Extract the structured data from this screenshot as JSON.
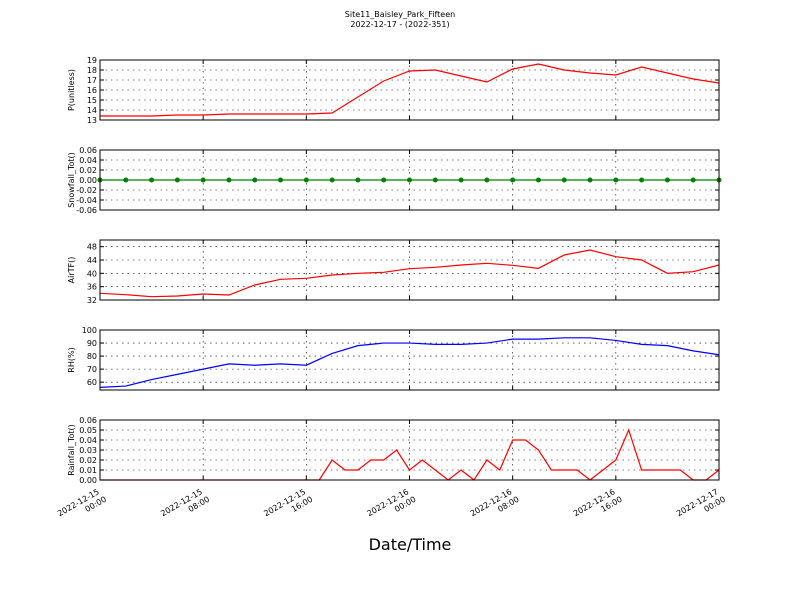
{
  "title": "Site11_Baisley_Park_Fifteen",
  "subtitle": "2022-12-17 - (2022-351)",
  "x_label": "Date/Time",
  "chart_data": [
    {
      "type": "line",
      "y_label": "P(unitless)",
      "color": "#ff0000",
      "grid": true,
      "x": [
        "2022-12-15 00:00",
        "2022-12-15 02:00",
        "2022-12-15 04:00",
        "2022-12-15 06:00",
        "2022-12-15 08:00",
        "2022-12-15 10:00",
        "2022-12-15 12:00",
        "2022-12-15 14:00",
        "2022-12-15 16:00",
        "2022-12-15 18:00",
        "2022-12-15 20:00",
        "2022-12-15 22:00",
        "2022-12-16 00:00",
        "2022-12-16 02:00",
        "2022-12-16 04:00",
        "2022-12-16 06:00",
        "2022-12-16 08:00",
        "2022-12-16 10:00",
        "2022-12-16 12:00",
        "2022-12-16 14:00",
        "2022-12-16 16:00",
        "2022-12-16 18:00",
        "2022-12-16 20:00",
        "2022-12-16 22:00",
        "2022-12-17 00:00"
      ],
      "values": [
        13.4,
        13.4,
        13.4,
        13.5,
        13.5,
        13.6,
        13.6,
        13.6,
        13.6,
        13.7,
        15.3,
        16.9,
        17.9,
        18.0,
        17.4,
        16.8,
        18.1,
        18.6,
        18.0,
        17.7,
        17.5,
        18.3,
        17.7,
        17.1,
        16.7
      ],
      "xlim": [
        "2022-12-15 00:00",
        "2022-12-17 00:00"
      ],
      "xticks": [
        "2022-12-15 00:00",
        "2022-12-15 08:00",
        "2022-12-15 16:00",
        "2022-12-16 00:00",
        "2022-12-16 08:00",
        "2022-12-16 16:00",
        "2022-12-17 00:00"
      ],
      "ylim": [
        13,
        19
      ],
      "yticks": [
        13,
        14,
        15,
        16,
        17,
        18,
        19
      ]
    },
    {
      "type": "line",
      "y_label": "Snowfall_Tot()",
      "color": "#008000",
      "marker": "o",
      "grid": true,
      "x": [
        "2022-12-15 00:00",
        "2022-12-15 02:00",
        "2022-12-15 04:00",
        "2022-12-15 06:00",
        "2022-12-15 08:00",
        "2022-12-15 10:00",
        "2022-12-15 12:00",
        "2022-12-15 14:00",
        "2022-12-15 16:00",
        "2022-12-15 18:00",
        "2022-12-15 20:00",
        "2022-12-15 22:00",
        "2022-12-16 00:00",
        "2022-12-16 02:00",
        "2022-12-16 04:00",
        "2022-12-16 06:00",
        "2022-12-16 08:00",
        "2022-12-16 10:00",
        "2022-12-16 12:00",
        "2022-12-16 14:00",
        "2022-12-16 16:00",
        "2022-12-16 18:00",
        "2022-12-16 20:00",
        "2022-12-16 22:00",
        "2022-12-17 00:00"
      ],
      "values": [
        0,
        0,
        0,
        0,
        0,
        0,
        0,
        0,
        0,
        0,
        0,
        0,
        0,
        0,
        0,
        0,
        0,
        0,
        0,
        0,
        0,
        0,
        0,
        0,
        0
      ],
      "xlim": [
        "2022-12-15 00:00",
        "2022-12-17 00:00"
      ],
      "xticks": [
        "2022-12-15 00:00",
        "2022-12-15 08:00",
        "2022-12-15 16:00",
        "2022-12-16 00:00",
        "2022-12-16 08:00",
        "2022-12-16 16:00",
        "2022-12-17 00:00"
      ],
      "ylim": [
        -0.06,
        0.06
      ],
      "yticks": [
        -0.06,
        -0.04,
        -0.02,
        {
          "value": 0,
          "label": "0.00"
        },
        0.02,
        0.04,
        0.06
      ]
    },
    {
      "type": "line",
      "y_label": "AirTF()",
      "color": "#ff0000",
      "grid": true,
      "x": [
        "2022-12-15 00:00",
        "2022-12-15 02:00",
        "2022-12-15 04:00",
        "2022-12-15 06:00",
        "2022-12-15 08:00",
        "2022-12-15 10:00",
        "2022-12-15 12:00",
        "2022-12-15 14:00",
        "2022-12-15 16:00",
        "2022-12-15 18:00",
        "2022-12-15 20:00",
        "2022-12-15 22:00",
        "2022-12-16 00:00",
        "2022-12-16 02:00",
        "2022-12-16 04:00",
        "2022-12-16 06:00",
        "2022-12-16 08:00",
        "2022-12-16 10:00",
        "2022-12-16 12:00",
        "2022-12-16 14:00",
        "2022-12-16 16:00",
        "2022-12-16 18:00",
        "2022-12-16 20:00",
        "2022-12-16 22:00",
        "2022-12-17 00:00"
      ],
      "values": [
        34,
        33.6,
        33,
        33.2,
        33.8,
        33.5,
        36.5,
        38.2,
        38.5,
        39.5,
        40,
        40.3,
        41.4,
        41.8,
        42.5,
        43,
        42.4,
        41.5,
        45.5,
        47,
        45,
        44,
        40,
        40.5,
        42.5
      ],
      "xlim": [
        "2022-12-15 00:00",
        "2022-12-17 00:00"
      ],
      "xticks": [
        "2022-12-15 00:00",
        "2022-12-15 08:00",
        "2022-12-15 16:00",
        "2022-12-16 00:00",
        "2022-12-16 08:00",
        "2022-12-16 16:00",
        "2022-12-17 00:00"
      ],
      "ylim": [
        32,
        50
      ],
      "yticks": [
        32,
        36,
        40,
        44,
        48
      ]
    },
    {
      "type": "line",
      "y_label": "RH(%)",
      "color": "#0000ff",
      "grid": true,
      "x": [
        "2022-12-15 00:00",
        "2022-12-15 02:00",
        "2022-12-15 04:00",
        "2022-12-15 06:00",
        "2022-12-15 08:00",
        "2022-12-15 10:00",
        "2022-12-15 12:00",
        "2022-12-15 14:00",
        "2022-12-15 16:00",
        "2022-12-15 18:00",
        "2022-12-15 20:00",
        "2022-12-15 22:00",
        "2022-12-16 00:00",
        "2022-12-16 02:00",
        "2022-12-16 04:00",
        "2022-12-16 06:00",
        "2022-12-16 08:00",
        "2022-12-16 10:00",
        "2022-12-16 12:00",
        "2022-12-16 14:00",
        "2022-12-16 16:00",
        "2022-12-16 18:00",
        "2022-12-16 20:00",
        "2022-12-16 22:00",
        "2022-12-17 00:00"
      ],
      "values": [
        56,
        57,
        62,
        66,
        70,
        74,
        73,
        74,
        73,
        82,
        88,
        90,
        90,
        89,
        89,
        90,
        93,
        93,
        94,
        94,
        92,
        89,
        88,
        84,
        81
      ],
      "xlim": [
        "2022-12-15 00:00",
        "2022-12-17 00:00"
      ],
      "xticks": [
        "2022-12-15 00:00",
        "2022-12-15 08:00",
        "2022-12-15 16:00",
        "2022-12-16 00:00",
        "2022-12-16 08:00",
        "2022-12-16 16:00",
        "2022-12-17 00:00"
      ],
      "ylim": [
        54,
        100
      ],
      "yticks": [
        60,
        70,
        80,
        90,
        100
      ]
    },
    {
      "type": "line",
      "y_label": "Rainfall_Tot()",
      "color": "#ff0000",
      "grid": true,
      "x": [
        "2022-12-15 00:00",
        "2022-12-15 01:00",
        "2022-12-15 02:00",
        "2022-12-15 03:00",
        "2022-12-15 04:00",
        "2022-12-15 05:00",
        "2022-12-15 06:00",
        "2022-12-15 07:00",
        "2022-12-15 08:00",
        "2022-12-15 09:00",
        "2022-12-15 10:00",
        "2022-12-15 11:00",
        "2022-12-15 12:00",
        "2022-12-15 13:00",
        "2022-12-15 14:00",
        "2022-12-15 15:00",
        "2022-12-15 16:00",
        "2022-12-15 17:00",
        "2022-12-15 18:00",
        "2022-12-15 19:00",
        "2022-12-15 20:00",
        "2022-12-15 21:00",
        "2022-12-15 22:00",
        "2022-12-15 23:00",
        "2022-12-16 00:00",
        "2022-12-16 01:00",
        "2022-12-16 02:00",
        "2022-12-16 03:00",
        "2022-12-16 04:00",
        "2022-12-16 05:00",
        "2022-12-16 06:00",
        "2022-12-16 07:00",
        "2022-12-16 08:00",
        "2022-12-16 09:00",
        "2022-12-16 10:00",
        "2022-12-16 11:00",
        "2022-12-16 12:00",
        "2022-12-16 13:00",
        "2022-12-16 14:00",
        "2022-12-16 15:00",
        "2022-12-16 16:00",
        "2022-12-16 17:00",
        "2022-12-16 18:00",
        "2022-12-16 19:00",
        "2022-12-16 20:00",
        "2022-12-16 21:00",
        "2022-12-16 22:00",
        "2022-12-16 23:00",
        "2022-12-17 00:00"
      ],
      "values": [
        0,
        0,
        0,
        0,
        0,
        0,
        0,
        0,
        0,
        0,
        0,
        0,
        0,
        0,
        0,
        0,
        0,
        0,
        0.02,
        0.01,
        0.01,
        0.02,
        0.02,
        0.03,
        0.01,
        0.02,
        0.01,
        0,
        0.01,
        0,
        0.02,
        0.01,
        0.04,
        0.04,
        0.03,
        0.01,
        0.01,
        0.01,
        0,
        0.01,
        0.02,
        0.05,
        0.01,
        0.01,
        0.01,
        0.01,
        0,
        0,
        0.01
      ],
      "xlim": [
        "2022-12-15 00:00",
        "2022-12-17 00:00"
      ],
      "xticks": [
        "2022-12-15 00:00",
        "2022-12-15 08:00",
        "2022-12-15 16:00",
        "2022-12-16 00:00",
        "2022-12-16 08:00",
        "2022-12-16 16:00",
        "2022-12-17 00:00"
      ],
      "ylim": [
        0,
        0.06
      ],
      "yticks": [
        {
          "value": 0,
          "label": "0.00"
        },
        0.01,
        0.02,
        0.03,
        0.04,
        0.05,
        0.06
      ]
    }
  ]
}
